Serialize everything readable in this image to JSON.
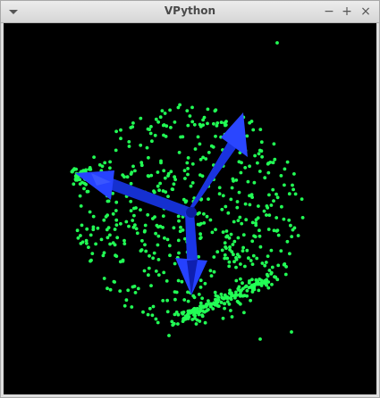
{
  "window": {
    "title": "VPython",
    "menu_icon": "chevron-down-icon",
    "controls": {
      "minimize": "−",
      "maximize": "+",
      "close": "×"
    }
  },
  "scene": {
    "background": "#000000",
    "arrow_color": "#1f3bff",
    "point_color": "#22ff55"
  }
}
